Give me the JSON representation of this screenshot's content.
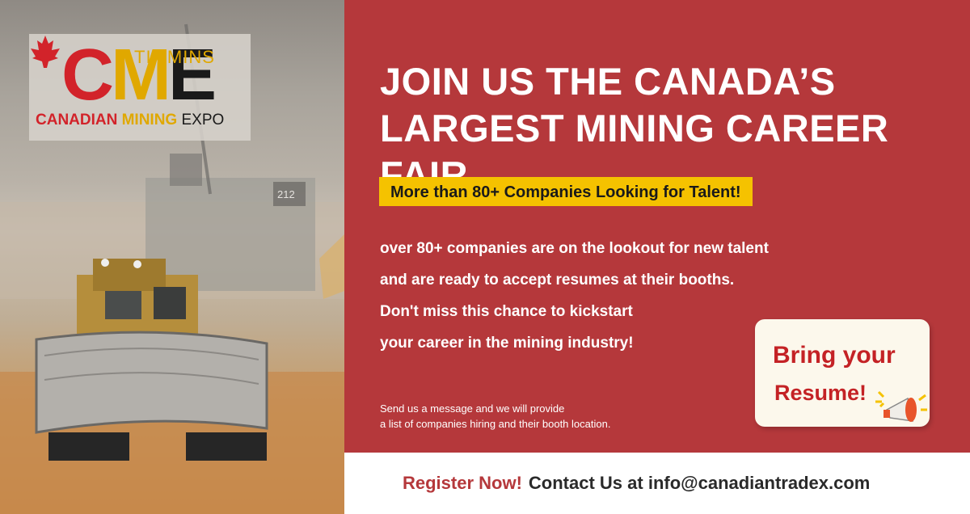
{
  "logo": {
    "letters": {
      "c": "C",
      "m": "M",
      "e": "E"
    },
    "timmins": "TIMMINS",
    "word1": "CANADIAN",
    "word2": "MINING",
    "word3": "EXPO"
  },
  "photo": {
    "truck_number": "212"
  },
  "headline": {
    "line1": "JOIN US THE CANADA’S",
    "line2": "LARGEST MINING CAREER FAIR"
  },
  "banner": "More than 80+ Companies Looking for Talent!",
  "body": [
    "over 80+ companies are on the lookout for new talent",
    "and are ready to accept resumes at their booths.",
    "Don't miss this chance to kickstart",
    "your career in the mining industry!"
  ],
  "note": [
    "Send us a message and we will provide",
    "a list of companies hiring and their booth location."
  ],
  "card": {
    "line1": "Bring your",
    "line2": "Resume!"
  },
  "footer": {
    "register": "Register Now!",
    "contact": "Contact Us at info@canadiantradex.com"
  },
  "colors": {
    "panel": "#b5383b",
    "banner": "#f5c200",
    "card": "#fcf8ec"
  }
}
